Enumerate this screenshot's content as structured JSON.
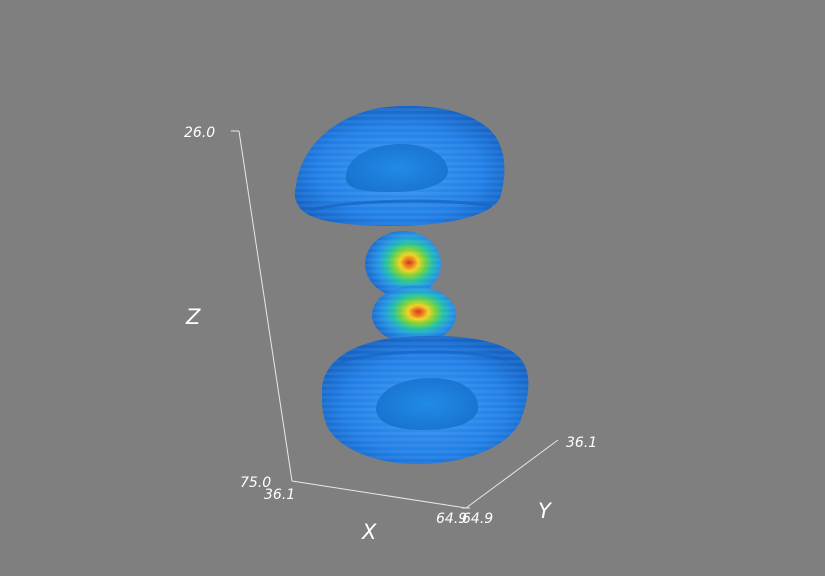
{
  "axes": {
    "x": {
      "title": "X",
      "min_label": "36.1",
      "max_label": "64.9"
    },
    "y": {
      "title": "Y",
      "min_label": "64.9",
      "max_label": "36.1"
    },
    "z": {
      "title": "Z",
      "min_label": "75.0",
      "max_label": "26.0"
    }
  },
  "colors": {
    "background": "#7f7f7f",
    "isosurface_low": "#1f78e6",
    "isosurface_high": "#e23a14",
    "axis_line": "#e8e8e8",
    "label": "#ffffff"
  }
}
